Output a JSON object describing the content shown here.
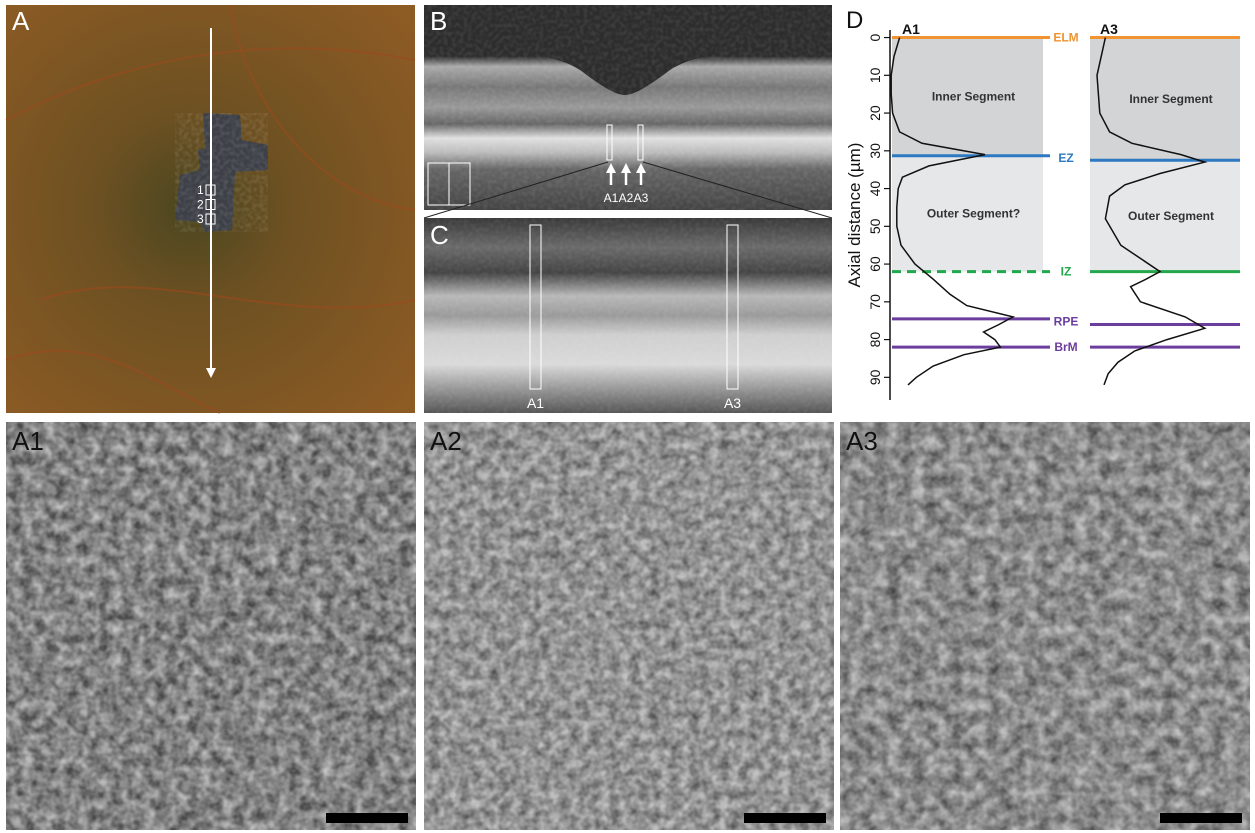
{
  "panels": [
    {
      "label": "A",
      "markers": [
        "1",
        "2",
        "3"
      ]
    },
    {
      "label": "B",
      "arrows": [
        "A1",
        "A2",
        "A3"
      ]
    },
    {
      "label": "C",
      "boxes": [
        "A1",
        "A3"
      ]
    },
    {
      "label": "A1"
    },
    {
      "label": "A2"
    },
    {
      "label": "A3"
    }
  ],
  "chart_data": {
    "type": "profile",
    "label": "D",
    "ylabel": "Axial distance (µm)",
    "ylim": [
      -2,
      96
    ],
    "yticks": [
      0,
      10,
      20,
      30,
      40,
      50,
      60,
      70,
      80,
      90
    ],
    "xlim": [
      0,
      1
    ],
    "series": [
      {
        "name": "A1",
        "color": "#111111",
        "regions": [
          "Inner Segment",
          "Outer Segment?"
        ],
        "depth": [
          0,
          5,
          10,
          15,
          20,
          25,
          28,
          31,
          34,
          37,
          40,
          45,
          50,
          55,
          60,
          64,
          68,
          71,
          74,
          76,
          78,
          80,
          82,
          84,
          87,
          90,
          92
        ],
        "intensity": [
          0.14,
          0.1,
          0.08,
          0.08,
          0.09,
          0.14,
          0.3,
          0.75,
          0.35,
          0.16,
          0.13,
          0.12,
          0.12,
          0.15,
          0.25,
          0.38,
          0.5,
          0.62,
          0.95,
          0.85,
          0.74,
          0.82,
          0.86,
          0.6,
          0.38,
          0.26,
          0.2
        ]
      },
      {
        "name": "A3",
        "color": "#111111",
        "regions": [
          "Inner Segment",
          "Outer Segment"
        ],
        "depth": [
          0,
          5,
          10,
          15,
          20,
          25,
          28,
          31,
          33,
          36,
          39,
          42,
          48,
          55,
          59,
          62,
          64,
          66,
          70,
          74,
          77,
          80,
          83,
          86,
          89,
          92
        ],
        "intensity": [
          0.11,
          0.08,
          0.05,
          0.06,
          0.07,
          0.14,
          0.3,
          0.65,
          0.82,
          0.5,
          0.25,
          0.14,
          0.11,
          0.22,
          0.38,
          0.5,
          0.4,
          0.29,
          0.36,
          0.68,
          0.82,
          0.55,
          0.32,
          0.2,
          0.13,
          0.1
        ]
      }
    ],
    "layers": [
      {
        "name": "ELM",
        "color": "#f09330",
        "depth": [
          0,
          0
        ],
        "dashed": [
          false,
          false
        ]
      },
      {
        "name": "EZ",
        "color": "#2c79c2",
        "depth": [
          31.3,
          32.5
        ],
        "dashed": [
          false,
          false
        ]
      },
      {
        "name": "IZ",
        "color": "#22a74d",
        "depth": [
          62,
          62
        ],
        "dashed": [
          true,
          false
        ]
      },
      {
        "name": "RPE",
        "color": "#6b3d9c",
        "depth": [
          74.5,
          76
        ],
        "dashed": [
          false,
          false
        ]
      },
      {
        "name": "BrM",
        "color": "#6b3d9c",
        "depth": [
          82,
          82
        ],
        "dashed": [
          false,
          false
        ]
      }
    ]
  }
}
